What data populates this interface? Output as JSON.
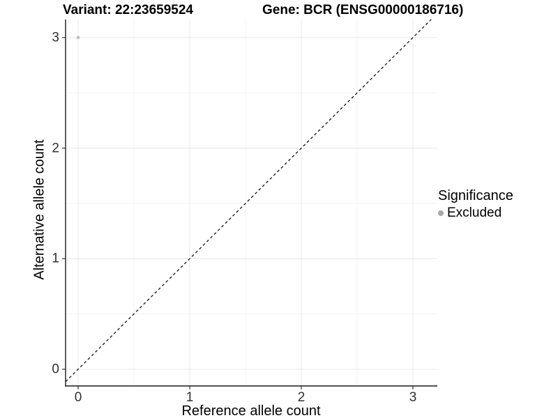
{
  "titles": {
    "variant": "Variant: 22:23659524",
    "gene": "Gene: BCR (ENSG00000186716)"
  },
  "chart_data": {
    "type": "scatter",
    "title_left": "Variant: 22:23659524",
    "title_right": "Gene: BCR (ENSG00000186716)",
    "xlabel": "Reference allele count",
    "ylabel": "Alternative allele count",
    "x_ticks": [
      0,
      1,
      2,
      3
    ],
    "y_ticks": [
      0,
      1,
      2,
      3
    ],
    "x_minor_ticks": [
      0.5,
      1.5,
      2.5
    ],
    "y_minor_ticks": [
      0.5,
      1.5,
      2.5
    ],
    "xlim": [
      -0.1125,
      3.21875
    ],
    "ylim": [
      -0.1513,
      3.1638
    ],
    "grid": true,
    "series": [
      {
        "name": "Excluded",
        "points": [
          {
            "x": 0,
            "y": 3
          }
        ]
      }
    ],
    "identity_line": {
      "style": "dashed",
      "slope": 1,
      "intercept": 0
    },
    "legend_position": "right"
  },
  "legend": {
    "title": "Significance",
    "items": [
      {
        "label": "Excluded",
        "color": "#a8a8a8"
      }
    ]
  },
  "colors": {
    "point": "#bfbfbf",
    "legend_dot": "#a8a8a8",
    "grid_major": "#e8e8e8",
    "grid_minor": "#f3f3f3",
    "axis_line": "#1a1a1a",
    "tick_mark": "#333333",
    "identity_line": "#000000",
    "background": "#ffffff"
  }
}
